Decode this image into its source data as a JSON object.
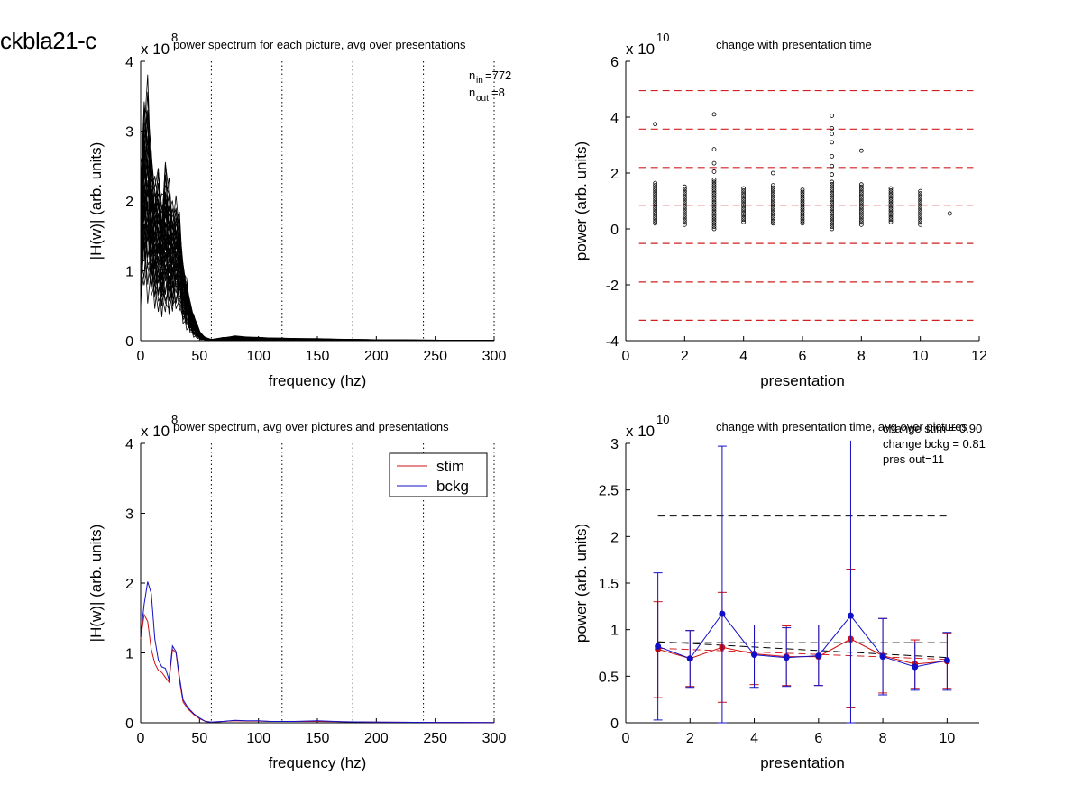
{
  "figure_title": "ckbla21-c",
  "panels_text": {
    "p1_note_nin": "772",
    "p1_note_nout": "8",
    "p4_ann": [
      "change stim = 0.90",
      "change bckg = 0.81",
      "pres out=11"
    ]
  },
  "colors": {
    "stim": "#d01010",
    "bckg": "#1010c8",
    "dashed_red": "#d02020",
    "black": "#000000"
  },
  "chart_data": [
    {
      "type": "line",
      "title": "power spectrum for each picture, avg over presentations",
      "xlabel": "frequency (hz)",
      "ylabel": "|H(w)| (arb. units)",
      "exponent": "8",
      "xlim": [
        0,
        300
      ],
      "ylim": [
        0,
        4
      ],
      "xticks": [
        0,
        50,
        100,
        150,
        200,
        250,
        300
      ],
      "yticks": [
        0,
        1,
        2,
        3,
        4
      ],
      "vlines_dotted": [
        60,
        120,
        180,
        240,
        300
      ],
      "n_in": 772,
      "n_out": 8,
      "envelope": {
        "x": [
          0,
          3,
          6,
          9,
          12,
          15,
          18,
          21,
          24,
          27,
          30,
          33,
          36,
          39,
          42,
          45,
          48,
          51,
          55,
          60,
          70,
          80,
          100,
          120,
          150,
          180,
          240,
          300
        ],
        "upper": [
          2.6,
          3.7,
          3.85,
          2.9,
          2.5,
          2.6,
          2.2,
          2.7,
          2.4,
          2.1,
          2.1,
          1.9,
          1.2,
          0.9,
          0.6,
          0.4,
          0.25,
          0.12,
          0.05,
          0.02,
          0.05,
          0.07,
          0.05,
          0.04,
          0.03,
          0.02,
          0.01,
          0.005
        ],
        "lower": [
          0.3,
          0.6,
          0.5,
          0.45,
          0.4,
          0.35,
          0.25,
          0.3,
          0.25,
          0.3,
          0.4,
          0.3,
          0.2,
          0.15,
          0.08,
          0.04,
          0.02,
          0.01,
          0.005,
          0.0,
          0.0,
          0.0,
          0.0,
          0.0,
          0.0,
          0.0,
          0.0,
          0.0
        ]
      }
    },
    {
      "type": "scatter",
      "title": "change with presentation time",
      "xlabel": "presentation",
      "ylabel": "power (arb. units)",
      "exponent": "10",
      "xlim": [
        0,
        12
      ],
      "ylim": [
        -4,
        6
      ],
      "xticks": [
        0,
        2,
        4,
        6,
        8,
        10,
        12
      ],
      "yticks": [
        -4,
        -2,
        0,
        2,
        4,
        6
      ],
      "hlines_dashed": [
        4.95,
        3.57,
        2.2,
        0.85,
        -0.52,
        -1.9,
        -3.27
      ],
      "hline_x_range": [
        0.45,
        11.8
      ],
      "columns": [
        {
          "x": 1,
          "min": 0.2,
          "max": 1.65,
          "outliers": [
            3.75
          ]
        },
        {
          "x": 2,
          "min": 0.15,
          "max": 1.55,
          "outliers": []
        },
        {
          "x": 3,
          "min": 0.0,
          "max": 1.8,
          "outliers": [
            2.05,
            2.35,
            2.85,
            4.1
          ]
        },
        {
          "x": 4,
          "min": 0.25,
          "max": 1.5,
          "outliers": []
        },
        {
          "x": 5,
          "min": 0.2,
          "max": 1.6,
          "outliers": [
            2.0
          ]
        },
        {
          "x": 6,
          "min": 0.2,
          "max": 1.45,
          "outliers": []
        },
        {
          "x": 7,
          "min": 0.0,
          "max": 1.7,
          "outliers": [
            1.95,
            2.25,
            2.6,
            3.1,
            3.4,
            3.6,
            4.05
          ]
        },
        {
          "x": 8,
          "min": 0.15,
          "max": 1.65,
          "outliers": [
            2.8
          ]
        },
        {
          "x": 9,
          "min": 0.25,
          "max": 1.45,
          "outliers": []
        },
        {
          "x": 10,
          "min": 0.15,
          "max": 1.4,
          "outliers": []
        },
        {
          "x": 11,
          "min": 0.55,
          "max": 0.55,
          "outliers": []
        }
      ]
    },
    {
      "type": "line",
      "title": "power spectrum, avg over pictures and presentations",
      "xlabel": "frequency (hz)",
      "ylabel": "|H(w)| (arb. units)",
      "exponent": "8",
      "xlim": [
        0,
        300
      ],
      "ylim": [
        0,
        4
      ],
      "xticks": [
        0,
        50,
        100,
        150,
        200,
        250,
        300
      ],
      "yticks": [
        0,
        1,
        2,
        3,
        4
      ],
      "vlines_dotted": [
        60,
        120,
        180,
        240,
        300
      ],
      "legend": "top-right",
      "x": [
        0,
        3,
        6,
        9,
        12,
        15,
        18,
        21,
        24,
        27,
        30,
        33,
        36,
        40,
        45,
        50,
        55,
        60,
        70,
        80,
        90,
        100,
        110,
        120,
        130,
        150,
        170,
        200,
        250,
        300
      ],
      "series": [
        {
          "name": "stim",
          "values": [
            1.2,
            1.55,
            1.45,
            1.05,
            0.85,
            0.75,
            0.72,
            0.65,
            0.58,
            1.05,
            1.0,
            0.6,
            0.3,
            0.2,
            0.12,
            0.06,
            0.02,
            0.01,
            0.02,
            0.03,
            0.025,
            0.025,
            0.02,
            0.02,
            0.02,
            0.02,
            0.015,
            0.01,
            0.005,
            0.003
          ]
        },
        {
          "name": "bckg",
          "values": [
            1.25,
            1.7,
            2.02,
            1.85,
            1.2,
            0.9,
            0.8,
            0.78,
            0.62,
            1.1,
            1.02,
            0.65,
            0.33,
            0.22,
            0.13,
            0.07,
            0.02,
            0.01,
            0.02,
            0.035,
            0.03,
            0.03,
            0.02,
            0.02,
            0.02,
            0.03,
            0.015,
            0.01,
            0.005,
            0.003
          ]
        }
      ]
    },
    {
      "type": "line",
      "title": "change with presentation time, avg over pictures",
      "xlabel": "presentation",
      "ylabel": "power (arb. units)",
      "exponent": "10",
      "xlim": [
        0,
        11
      ],
      "ylim": [
        0,
        3
      ],
      "xticks": [
        0,
        2,
        4,
        6,
        8,
        10
      ],
      "yticks": [
        0,
        0.5,
        1,
        1.5,
        2,
        2.5,
        3
      ],
      "ytick_labels": [
        "0",
        "0.5",
        "1",
        "1.5",
        "2",
        "2.5",
        "3"
      ],
      "x": [
        1,
        2,
        3,
        4,
        5,
        6,
        7,
        8,
        9,
        10
      ],
      "series": [
        {
          "name": "stim",
          "values": [
            0.79,
            0.69,
            0.81,
            0.74,
            0.71,
            0.71,
            0.9,
            0.72,
            0.63,
            0.66
          ],
          "err_low": [
            0.27,
            0.39,
            0.22,
            0.41,
            0.4,
            0.4,
            0.16,
            0.32,
            0.37,
            0.37
          ],
          "err_high": [
            1.3,
            0.99,
            1.4,
            1.05,
            1.04,
            1.05,
            1.65,
            1.12,
            0.89,
            0.96
          ]
        },
        {
          "name": "bckg",
          "values": [
            0.82,
            0.69,
            1.17,
            0.73,
            0.7,
            0.72,
            1.15,
            0.71,
            0.6,
            0.67
          ],
          "err_low": [
            0.03,
            0.38,
            0.0,
            0.38,
            0.39,
            0.4,
            0.0,
            0.3,
            0.35,
            0.35
          ],
          "err_high": [
            1.61,
            0.99,
            2.97,
            1.05,
            1.02,
            1.05,
            3.1,
            1.12,
            0.86,
            0.97
          ]
        }
      ],
      "hlines_dashed": [
        {
          "color": "black",
          "x": [
            1,
            10
          ],
          "y": [
            2.22,
            2.22
          ]
        },
        {
          "color": "black",
          "x": [
            1,
            10
          ],
          "y": [
            0.86,
            0.86
          ]
        },
        {
          "color": "black",
          "x": [
            1,
            10
          ],
          "y": [
            0.87,
            0.7
          ]
        },
        {
          "color": "red",
          "x": [
            1,
            10
          ],
          "y": [
            0.8,
            0.68
          ]
        }
      ]
    }
  ]
}
